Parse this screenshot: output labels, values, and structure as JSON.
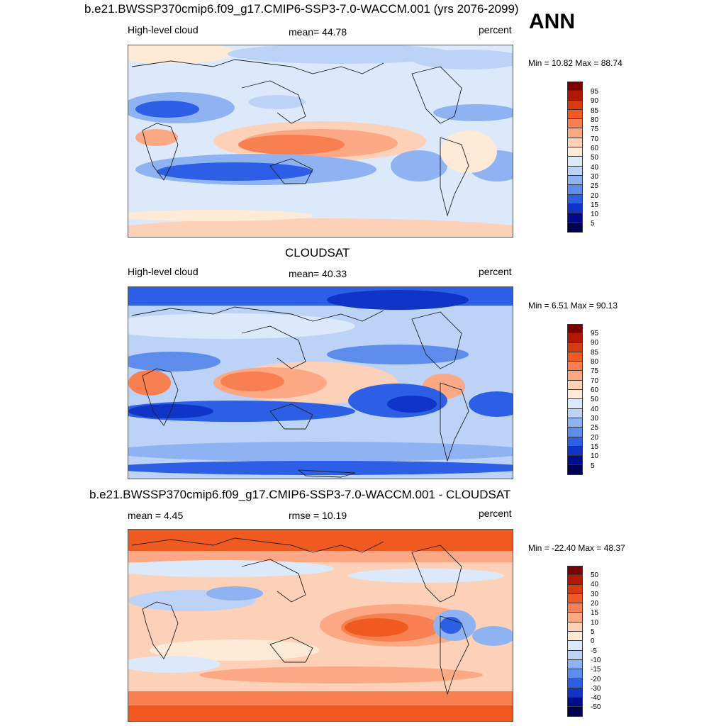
{
  "header": {
    "ann_label": "ANN"
  },
  "panels": [
    {
      "title": "b.e21.BWSSP370cmip6.f09_g17.CMIP6-SSP3-7.0-WACCM.001 (yrs 2076-2099)",
      "left_label": "High-level cloud",
      "center_label": "mean=  44.78",
      "right_label": "percent",
      "minmax": "Min =  10.82 Max =  88.74",
      "colorbar_labels": [
        "95",
        "90",
        "85",
        "80",
        "75",
        "70",
        "60",
        "50",
        "40",
        "30",
        "25",
        "20",
        "15",
        "10",
        "5"
      ]
    },
    {
      "title": "CLOUDSAT",
      "left_label": "High-level cloud",
      "center_label": "mean=  40.33",
      "right_label": "percent",
      "minmax": "Min =   6.51 Max =  90.13",
      "colorbar_labels": [
        "95",
        "90",
        "85",
        "80",
        "75",
        "70",
        "60",
        "50",
        "40",
        "30",
        "25",
        "20",
        "15",
        "10",
        "5"
      ]
    },
    {
      "title": "b.e21.BWSSP370cmip6.f09_g17.CMIP6-SSP3-7.0-WACCM.001 - CLOUDSAT",
      "left_label": "mean =   4.45",
      "center_label": "rmse =  10.19",
      "right_label": "percent",
      "minmax": "Min = -22.40 Max =  48.37",
      "colorbar_labels": [
        "50",
        "40",
        "30",
        "20",
        "15",
        "10",
        "5",
        "0",
        "-5",
        "-10",
        "-15",
        "-20",
        "-30",
        "-40",
        "-50"
      ]
    }
  ],
  "colors": {
    "scale": [
      "#7a0000",
      "#b01800",
      "#d83a10",
      "#f05a20",
      "#f88050",
      "#fca884",
      "#fdd0b8",
      "#fdebd8",
      "#dce9fa",
      "#bcd3f7",
      "#8fb2f2",
      "#5e8cec",
      "#2c5fe6",
      "#1034c8",
      "#000a8c",
      "#000055"
    ],
    "coast": "#222222"
  }
}
